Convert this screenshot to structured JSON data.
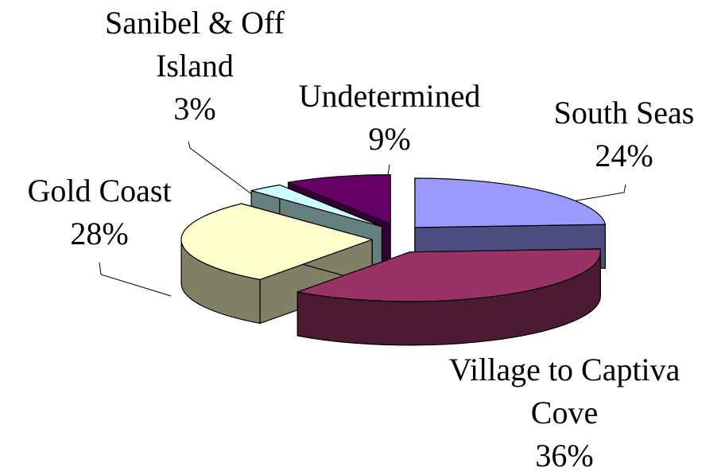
{
  "chart_data": {
    "type": "pie",
    "categories": [
      "South Seas",
      "Village to Captiva Cove",
      "Gold Coast",
      "Sanibel & Off Island",
      "Undetermined"
    ],
    "values": [
      24,
      36,
      28,
      3,
      9
    ],
    "value_labels": [
      "24%",
      "36%",
      "28%",
      "3%",
      "9%"
    ],
    "colors": [
      "#9999ff",
      "#993366",
      "#ffffcc",
      "#ccffff",
      "#660066"
    ],
    "side_colors": [
      "#4d4d80",
      "#4d1a33",
      "#808066",
      "#668080",
      "#330033"
    ]
  }
}
